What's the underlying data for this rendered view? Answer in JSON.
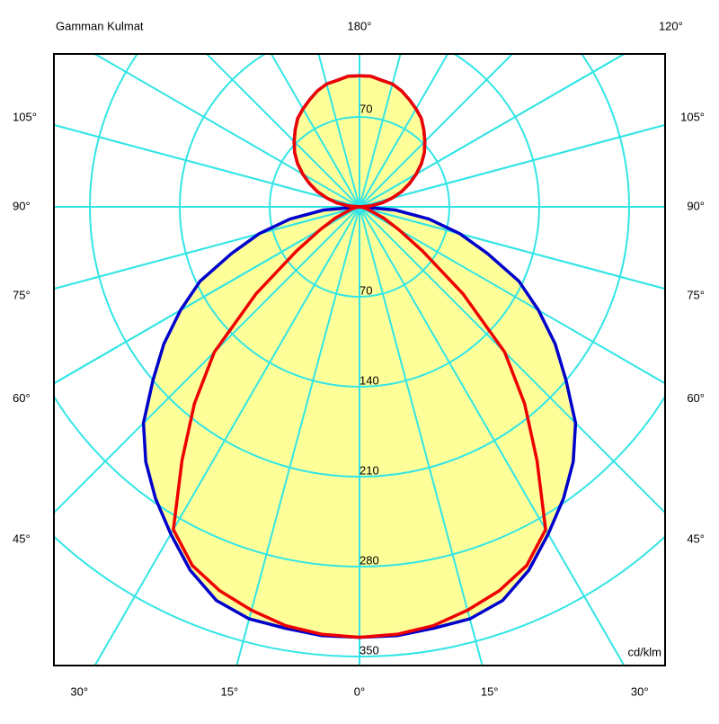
{
  "chart_data": {
    "type": "polar",
    "title": "Gamman Kulmat",
    "unit": "cd/klm",
    "x": [
      0,
      5,
      10,
      15,
      20,
      25,
      30,
      35,
      40,
      45,
      50,
      55,
      60,
      65,
      70,
      75,
      80,
      85,
      90,
      95,
      100,
      105,
      110,
      115,
      120,
      125,
      130,
      135,
      140,
      145,
      150,
      155,
      160,
      165,
      170,
      175,
      180
    ],
    "series": [
      {
        "color": "#0000cc",
        "fill": "#ffff99",
        "values": [
          335,
          335,
          333,
          332,
          326,
          312,
          294,
          277,
          259,
          238,
          210,
          186,
          161,
          137,
          106,
          81,
          55,
          28,
          0,
          9,
          18,
          26,
          35,
          43,
          51,
          59,
          66,
          72,
          78,
          84,
          88,
          92,
          96,
          99,
          100,
          102,
          102
        ]
      },
      {
        "color": "#ee0000",
        "values": [
          335,
          334,
          331,
          325,
          318,
          308,
          290,
          241,
          200,
          160,
          105,
          60,
          35,
          21,
          10,
          6,
          2,
          1,
          0,
          9,
          18,
          26,
          35,
          43,
          51,
          59,
          66,
          72,
          78,
          84,
          88,
          92,
          96,
          99,
          100,
          102,
          102
        ]
      }
    ],
    "rlim": [
      0,
      350
    ],
    "rticks": [
      70,
      140,
      210,
      280,
      350
    ],
    "angle_labels": [
      {
        "value": -30,
        "label": "30°"
      },
      {
        "value": -15,
        "label": "15°"
      },
      {
        "value": 0,
        "label": "0°"
      },
      {
        "value": 15,
        "label": "15°"
      },
      {
        "value": 30,
        "label": "30°"
      },
      {
        "value": -45,
        "label": "45°"
      },
      {
        "value": -60,
        "label": "60°"
      },
      {
        "value": -75,
        "label": "75°"
      },
      {
        "value": -90,
        "label": "90°"
      },
      {
        "value": -105,
        "label": "105°"
      },
      {
        "value": 45,
        "label": "45°"
      },
      {
        "value": 60,
        "label": "60°"
      },
      {
        "value": 75,
        "label": "75°"
      },
      {
        "value": 90,
        "label": "90°"
      },
      {
        "value": 105,
        "label": "105°"
      },
      {
        "value": 180,
        "label": "180°"
      },
      {
        "value": 120,
        "label": "120°"
      }
    ],
    "grid_color": "#33e5e5"
  }
}
